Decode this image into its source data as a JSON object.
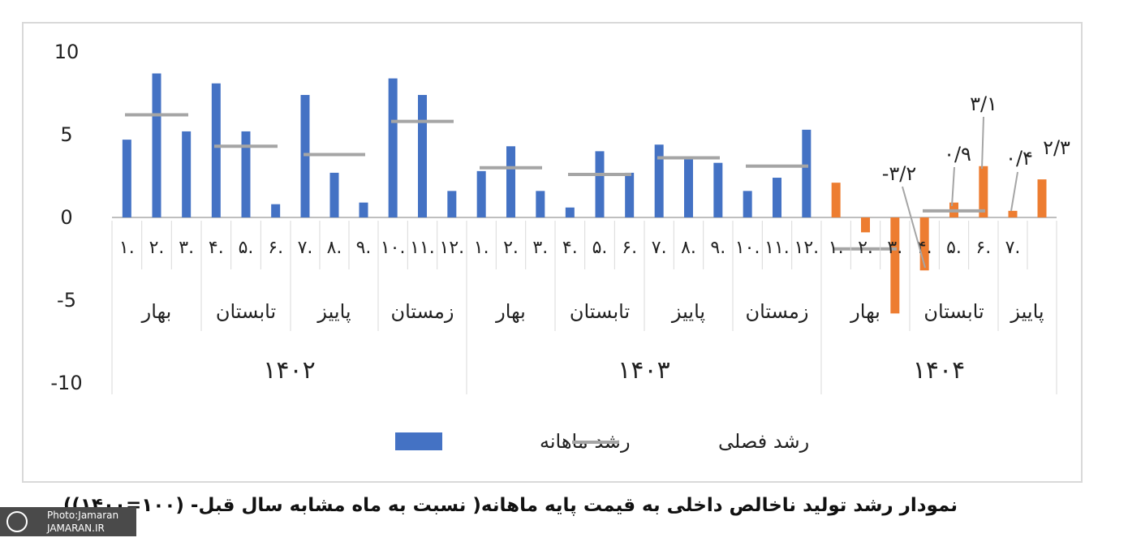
{
  "chart_data": {
    "type": "bar",
    "y_ticks": [
      "10",
      "5",
      "0",
      "-5",
      "-10"
    ],
    "ylim": [
      -10,
      10
    ],
    "years": [
      {
        "label": "۱۴۰۲",
        "quarters": [
          {
            "label": "بهار",
            "months": [
              "۱.",
              "۲.",
              "۳."
            ],
            "monthly": [
              4.7,
              8.7,
              5.2
            ],
            "seasonal": 6.2
          },
          {
            "label": "تابستان",
            "months": [
              "۴.",
              "۵.",
              "۶."
            ],
            "monthly": [
              8.1,
              5.2,
              0.8
            ],
            "seasonal": 4.3
          },
          {
            "label": "پاییز",
            "months": [
              "۷.",
              "۸.",
              "۹."
            ],
            "monthly": [
              7.4,
              2.7,
              0.9
            ],
            "seasonal": 3.8
          },
          {
            "label": "زمستان",
            "months": [
              "۱۰.",
              "۱۱.",
              "۱۲."
            ],
            "monthly": [
              8.4,
              7.4,
              1.6
            ],
            "seasonal": 5.8
          }
        ]
      },
      {
        "label": "۱۴۰۳",
        "quarters": [
          {
            "label": "بهار",
            "months": [
              "۱.",
              "۲.",
              "۳."
            ],
            "monthly": [
              2.8,
              4.3,
              1.6
            ],
            "seasonal": 3.0
          },
          {
            "label": "تابستان",
            "months": [
              "۴.",
              "۵.",
              "۶."
            ],
            "monthly": [
              0.6,
              4.0,
              2.7
            ],
            "seasonal": 2.6
          },
          {
            "label": "پاییز",
            "months": [
              "۷.",
              "۸.",
              "۹."
            ],
            "monthly": [
              4.4,
              3.7,
              3.3
            ],
            "seasonal": 3.6
          },
          {
            "label": "زمستان",
            "months": [
              "۱۰.",
              "۱۱.",
              "۱۲."
            ],
            "monthly": [
              1.6,
              2.4,
              5.3
            ],
            "seasonal": 3.1
          }
        ]
      },
      {
        "label": "۱۴۰۴",
        "quarters": [
          {
            "label": "بهار",
            "months": [
              "۱.",
              "۲.",
              "۳."
            ],
            "monthly": [
              2.1,
              -0.9,
              -5.8
            ],
            "seasonal": -1.9
          },
          {
            "label": "تابستان",
            "months": [
              "۴.",
              "۵.",
              "۶."
            ],
            "monthly": [
              -3.2,
              0.9,
              3.1
            ],
            "seasonal": 0.4
          },
          {
            "label": "پاییز",
            "months": [
              "۷."
            ],
            "monthly": [
              0.4
            ],
            "seasonal": null,
            "extra_bar": 2.3
          }
        ]
      }
    ],
    "data_labels": [
      {
        "text": "-۳/۲",
        "value": -3.2
      },
      {
        "text": "۰/۹",
        "value": 0.9
      },
      {
        "text": "۳/۱",
        "value": 3.1
      },
      {
        "text": "۰/۴",
        "value": 0.4
      },
      {
        "text": "۲/۳",
        "value": 2.3
      }
    ],
    "legend": {
      "monthly": "رشد ماهانه",
      "seasonal": "رشد فصلی"
    },
    "colors": {
      "monthly": "#4472c4",
      "monthly_2025": "#ed7d31",
      "seasonal": "#a5a5a5"
    }
  },
  "caption": "نمودار رشد تولید ناخالص داخلی به قیمت پایه ماهانه( نسبت به ماه مشابه سال قبل- (۱۰۰=۱۴۰۰))",
  "credit": {
    "line1": "Photo:Jamaran",
    "line2": "JAMARAN.IR"
  }
}
